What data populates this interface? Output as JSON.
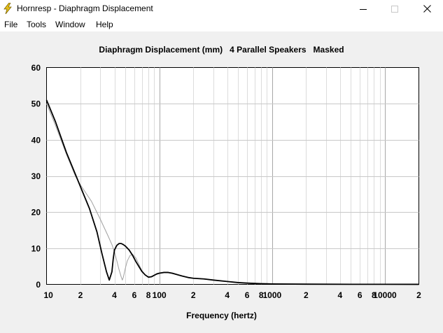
{
  "window": {
    "title": "Hornresp - Diaphragm Displacement"
  },
  "menu": {
    "items": [
      "File",
      "Tools",
      "Window",
      "Help"
    ]
  },
  "colors": {
    "background": "#f0f0f0",
    "plot_background": "#ffffff",
    "grid": "#c8c8c8",
    "main_curve": "#000000",
    "masked_curve": "#a0a0a0",
    "app_icon": "#e8c21a"
  },
  "chart_data": {
    "type": "line",
    "title": "Diaphragm Displacement (mm)   4 Parallel Speakers   Masked",
    "xlabel": "Frequency (hertz)",
    "ylabel": "",
    "x_scale": "log",
    "xlim": [
      10,
      20000
    ],
    "ylim": [
      0,
      60
    ],
    "y_ticks": [
      "0",
      "10",
      "20",
      "30",
      "40",
      "50",
      "60"
    ],
    "x_ticks": [
      {
        "value": 10,
        "label": "10"
      },
      {
        "value": 20,
        "label": "2"
      },
      {
        "value": 40,
        "label": "4"
      },
      {
        "value": 60,
        "label": "6"
      },
      {
        "value": 80,
        "label": "8"
      },
      {
        "value": 100,
        "label": "100"
      },
      {
        "value": 200,
        "label": "2"
      },
      {
        "value": 400,
        "label": "4"
      },
      {
        "value": 600,
        "label": "6"
      },
      {
        "value": 800,
        "label": "8"
      },
      {
        "value": 1000,
        "label": "1000"
      },
      {
        "value": 2000,
        "label": "2"
      },
      {
        "value": 4000,
        "label": "4"
      },
      {
        "value": 6000,
        "label": "6"
      },
      {
        "value": 8000,
        "label": "8"
      },
      {
        "value": 10000,
        "label": "10000"
      },
      {
        "value": 20000,
        "label": "2"
      }
    ],
    "grid": true,
    "series": [
      {
        "role": "main",
        "x": [
          10,
          12,
          15,
          18,
          20,
          24,
          28,
          31,
          34,
          36,
          38,
          39,
          40,
          42,
          44,
          46,
          48,
          50,
          54,
          58,
          62,
          66,
          70,
          75,
          80,
          85,
          90,
          95,
          100,
          110,
          120,
          130,
          140,
          160,
          180,
          200,
          250,
          300,
          400,
          500,
          600,
          800,
          1000,
          2000,
          5000,
          10000,
          20000
        ],
        "y": [
          51,
          45,
          36.5,
          30.5,
          27,
          21,
          14.5,
          8.5,
          3.5,
          1.2,
          3.5,
          7,
          9.5,
          10.8,
          11.3,
          11.3,
          11,
          10.6,
          9.5,
          8,
          6.3,
          4.9,
          3.6,
          2.6,
          2,
          2.1,
          2.5,
          2.9,
          3.1,
          3.3,
          3.3,
          3.1,
          2.8,
          2.3,
          1.9,
          1.7,
          1.5,
          1.2,
          0.8,
          0.5,
          0.35,
          0.2,
          0.12,
          0.06,
          0.03,
          0.02,
          0.01
        ]
      },
      {
        "role": "masked",
        "x": [
          10,
          12,
          15,
          18,
          20,
          25,
          30,
          35,
          38,
          40,
          42,
          44,
          46,
          47,
          48,
          50,
          52,
          55,
          58,
          62,
          66,
          70,
          75,
          80,
          85,
          90,
          100,
          110,
          120,
          140,
          160,
          200,
          300,
          500,
          1000,
          5000,
          20000
        ],
        "y": [
          50,
          44,
          36,
          30,
          27.5,
          23,
          18,
          13.5,
          11,
          9,
          6.5,
          4,
          2,
          1.2,
          2,
          4.5,
          6.5,
          8,
          8.3,
          7.3,
          5.5,
          3.8,
          2.6,
          2,
          2.2,
          2.5,
          3,
          3.3,
          3.2,
          2.8,
          2.3,
          1.7,
          1.2,
          0.5,
          0.12,
          0.03,
          0.01
        ]
      }
    ]
  }
}
